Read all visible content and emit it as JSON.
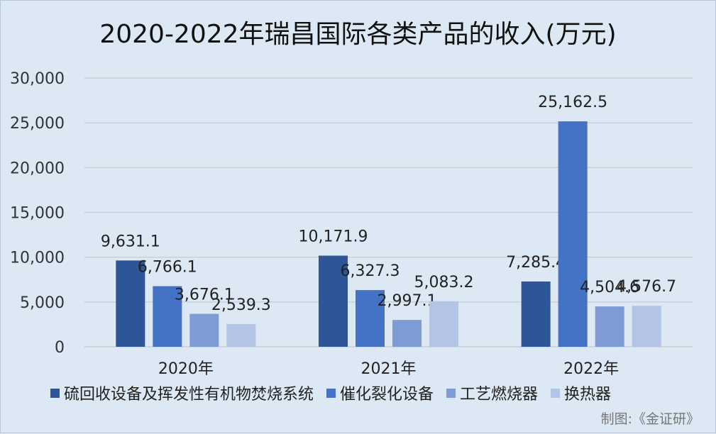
{
  "chart_data": {
    "type": "bar",
    "title": "2020-2022年瑞昌国际各类产品的收入(万元)",
    "categories": [
      "2020年",
      "2021年",
      "2022年"
    ],
    "series": [
      {
        "name": "硫回收设备及挥发性有机物焚烧系统",
        "color": "#2e5597",
        "values": [
          9631.1,
          10171.9,
          7285.4
        ],
        "labels": [
          "9,631.1",
          "10,171.9",
          "7,285.4"
        ]
      },
      {
        "name": "催化裂化设备",
        "color": "#4472c4",
        "values": [
          6766.1,
          6327.3,
          25162.5
        ],
        "labels": [
          "6,766.1",
          "6,327.3",
          "25,162.5"
        ]
      },
      {
        "name": "工艺燃烧器",
        "color": "#7f9bd6",
        "values": [
          3676.1,
          2997.1,
          4504.6
        ],
        "labels": [
          "3,676.1",
          "2,997.1",
          "4,504.6"
        ]
      },
      {
        "name": "换热器",
        "color": "#b4c4e5",
        "values": [
          2539.3,
          5083.2,
          4576.7
        ],
        "labels": [
          "2,539.3",
          "5,083.2",
          "4,576.7"
        ]
      }
    ],
    "yticks": [
      0,
      5000,
      10000,
      15000,
      20000,
      25000,
      30000
    ],
    "ytick_labels": [
      "0",
      "5,000",
      "10,000",
      "15,000",
      "20,000",
      "25,000",
      "30,000"
    ],
    "ylim": [
      0,
      30000
    ],
    "grid": true,
    "legend": "bottom"
  },
  "source_note": "制图:《金证研》"
}
